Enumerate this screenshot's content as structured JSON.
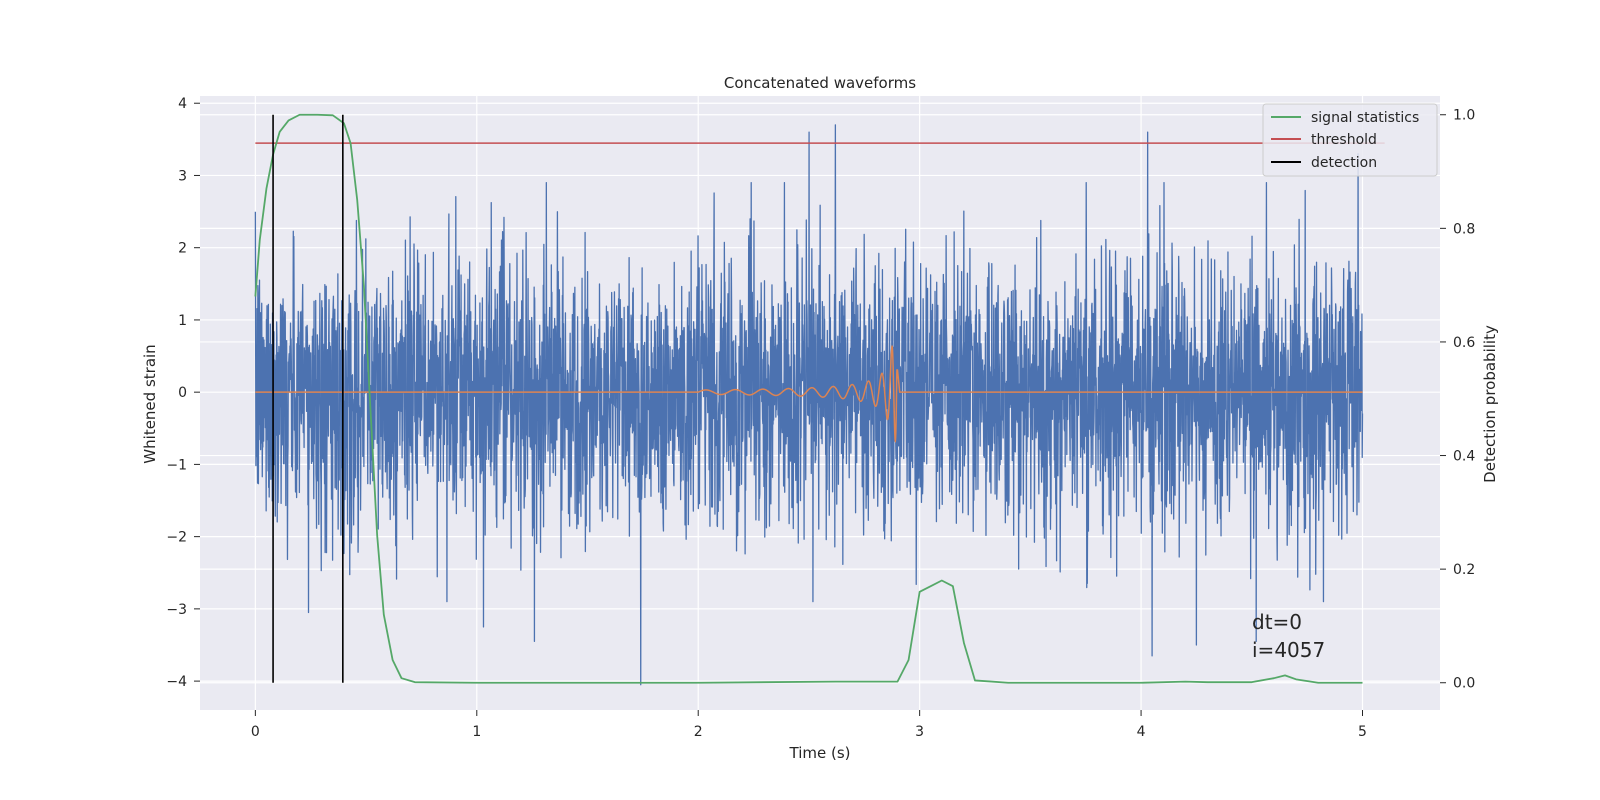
{
  "chart_data": {
    "type": "line",
    "title": "Concatenated waveforms",
    "xlabel": "Time (s)",
    "ylabel": "Whitened strain",
    "ylabel_right": "Detection probability",
    "xlim": [
      -0.25,
      5.35
    ],
    "ylim": [
      -4.4,
      4.1
    ],
    "ylim_right": [
      -0.048,
      1.033
    ],
    "x_ticks": [
      0,
      1,
      2,
      3,
      4,
      5
    ],
    "y_ticks": [
      -4,
      -3,
      -2,
      -1,
      0,
      1,
      2,
      3,
      4
    ],
    "y_ticks_right": [
      0.0,
      0.2,
      0.4,
      0.6,
      0.8,
      1.0
    ],
    "x_tick_labels": [
      "0",
      "1",
      "2",
      "3",
      "4",
      "5"
    ],
    "y_tick_labels": [
      "−4",
      "−3",
      "−2",
      "−1",
      "0",
      "1",
      "2",
      "3",
      "4"
    ],
    "y_tick_labels_right": [
      "0.0",
      "0.2",
      "0.4",
      "0.6",
      "0.8",
      "1.0"
    ],
    "grid": true,
    "background": "#eaeaf2",
    "legend_position": "top-right",
    "series": [
      {
        "name": "",
        "axis": "left",
        "kind": "noise",
        "color": "#4c72b0",
        "x_range": [
          0,
          5
        ],
        "typical_abs_max": 2.0,
        "extreme_values": [
          {
            "x": 2.5,
            "y": 3.6
          },
          {
            "x": 2.62,
            "y": 3.7
          },
          {
            "x": 4.03,
            "y": 3.6
          },
          {
            "x": 4.98,
            "y": 3.3
          },
          {
            "x": 0.24,
            "y": -3.05
          },
          {
            "x": 1.74,
            "y": -4.05
          },
          {
            "x": 1.03,
            "y": -3.25
          },
          {
            "x": 1.26,
            "y": -3.45
          },
          {
            "x": 4.05,
            "y": -3.65
          },
          {
            "x": 4.25,
            "y": -3.5
          },
          {
            "x": 4.52,
            "y": -3.45
          }
        ]
      },
      {
        "name": "",
        "axis": "left",
        "kind": "chirp",
        "color": "#dd8452",
        "baseline_x": [
          0,
          5
        ],
        "baseline_y": 0,
        "chirp": {
          "x_start": 2.0,
          "x_merger": 2.9,
          "amp_start": 0.03,
          "amp_peak": 0.68
        }
      },
      {
        "name": "signal statistics",
        "axis": "right",
        "color": "#55a868",
        "points": [
          [
            0.0,
            0.68
          ],
          [
            0.02,
            0.78
          ],
          [
            0.05,
            0.87
          ],
          [
            0.08,
            0.93
          ],
          [
            0.11,
            0.97
          ],
          [
            0.15,
            0.99
          ],
          [
            0.2,
            1.0
          ],
          [
            0.28,
            1.0
          ],
          [
            0.35,
            0.999
          ],
          [
            0.4,
            0.985
          ],
          [
            0.43,
            0.95
          ],
          [
            0.46,
            0.85
          ],
          [
            0.49,
            0.7
          ],
          [
            0.52,
            0.48
          ],
          [
            0.55,
            0.26
          ],
          [
            0.58,
            0.12
          ],
          [
            0.62,
            0.04
          ],
          [
            0.66,
            0.008
          ],
          [
            0.72,
            0.001
          ],
          [
            1.0,
            0.0
          ],
          [
            2.0,
            0.0
          ],
          [
            2.62,
            0.002
          ],
          [
            2.9,
            0.002
          ],
          [
            2.95,
            0.04
          ],
          [
            3.0,
            0.16
          ],
          [
            3.05,
            0.17
          ],
          [
            3.1,
            0.18
          ],
          [
            3.15,
            0.17
          ],
          [
            3.2,
            0.07
          ],
          [
            3.25,
            0.004
          ],
          [
            3.4,
            0.0
          ],
          [
            4.0,
            0.0
          ],
          [
            4.2,
            0.002
          ],
          [
            4.3,
            0.001
          ],
          [
            4.5,
            0.001
          ],
          [
            4.6,
            0.008
          ],
          [
            4.65,
            0.013
          ],
          [
            4.7,
            0.006
          ],
          [
            4.8,
            0.0
          ],
          [
            5.0,
            0.0
          ]
        ]
      },
      {
        "name": "threshold",
        "axis": "right",
        "color": "#c44e52",
        "x_range": [
          0,
          5.1
        ],
        "value": 0.95
      },
      {
        "name": "detection",
        "axis": "right",
        "color": "#000000",
        "vlines_x": [
          0.08,
          0.395
        ],
        "vlines_range": [
          0.0,
          1.0
        ]
      }
    ],
    "annotations": [
      "dt=0",
      "i=4057"
    ]
  }
}
